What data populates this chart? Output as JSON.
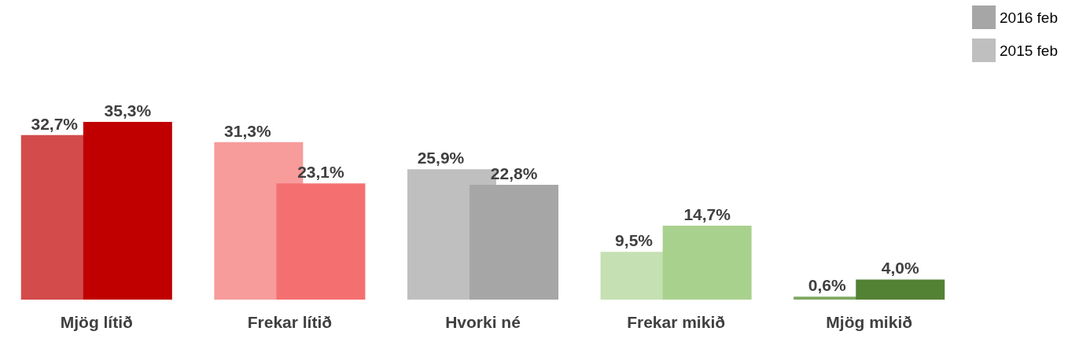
{
  "chart_data": {
    "type": "bar",
    "categories": [
      "Mjög lítið",
      "Frekar lítið",
      "Hvorki né",
      "Frekar mikið",
      "Mjög mikið"
    ],
    "series": [
      {
        "name": "2015 feb",
        "color": "#bfbfbf",
        "colors": [
          "#d34b4b",
          "#f79b9b",
          "#bfbfbf",
          "#c5e0b3",
          "#7fa760"
        ],
        "values": [
          32.7,
          31.3,
          25.9,
          9.5,
          0.6
        ],
        "value_labels": [
          "32,7%",
          "31,3%",
          "25,9%",
          "9,5%",
          "0,6%"
        ]
      },
      {
        "name": "2016 feb",
        "color": "#a6a6a6",
        "colors": [
          "#c00000",
          "#f47070",
          "#a6a6a6",
          "#a9d18e",
          "#548235"
        ],
        "values": [
          35.3,
          23.1,
          22.8,
          14.7,
          4.0
        ],
        "value_labels": [
          "35,3%",
          "23,1%",
          "22,8%",
          "14,7%",
          "4,0%"
        ]
      }
    ],
    "legend": "top right"
  }
}
